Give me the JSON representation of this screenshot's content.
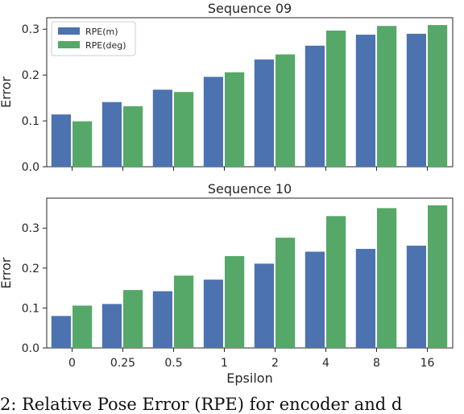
{
  "colors": {
    "rpe_m": "#4c72b0",
    "rpe_deg": "#55a868",
    "axes_bg": "#ffffff",
    "text": "#262626"
  },
  "caption": "2: Relative Pose Error (RPE) for encoder and d",
  "chart_data": [
    {
      "type": "bar",
      "title": "Sequence 09",
      "xlabel": "",
      "ylabel": "Error",
      "categories": [
        "0",
        "0.25",
        "0.5",
        "1",
        "2",
        "4",
        "8",
        "16"
      ],
      "series": [
        {
          "name": "RPE(m)",
          "values": [
            0.114,
            0.141,
            0.168,
            0.196,
            0.234,
            0.264,
            0.288,
            0.29
          ]
        },
        {
          "name": "RPE(deg)",
          "values": [
            0.099,
            0.132,
            0.163,
            0.206,
            0.245,
            0.297,
            0.307,
            0.309
          ]
        }
      ],
      "ylim": [
        0,
        0.325
      ],
      "yticks": [
        "0.0",
        "0.1",
        "0.2",
        "0.3"
      ],
      "show_xticklabels": false,
      "legend": "top-left",
      "grid": false
    },
    {
      "type": "bar",
      "title": "Sequence 10",
      "xlabel": "Epsilon",
      "ylabel": "Error",
      "categories": [
        "0",
        "0.25",
        "0.5",
        "1",
        "2",
        "4",
        "8",
        "16"
      ],
      "series": [
        {
          "name": "RPE(m)",
          "values": [
            0.08,
            0.11,
            0.142,
            0.171,
            0.211,
            0.241,
            0.248,
            0.256
          ]
        },
        {
          "name": "RPE(deg)",
          "values": [
            0.106,
            0.145,
            0.181,
            0.23,
            0.276,
            0.33,
            0.35,
            0.357
          ]
        }
      ],
      "ylim": [
        0,
        0.375
      ],
      "yticks": [
        "0.0",
        "0.1",
        "0.2",
        "0.3"
      ],
      "show_xticklabels": true,
      "legend": "none",
      "grid": false
    }
  ]
}
